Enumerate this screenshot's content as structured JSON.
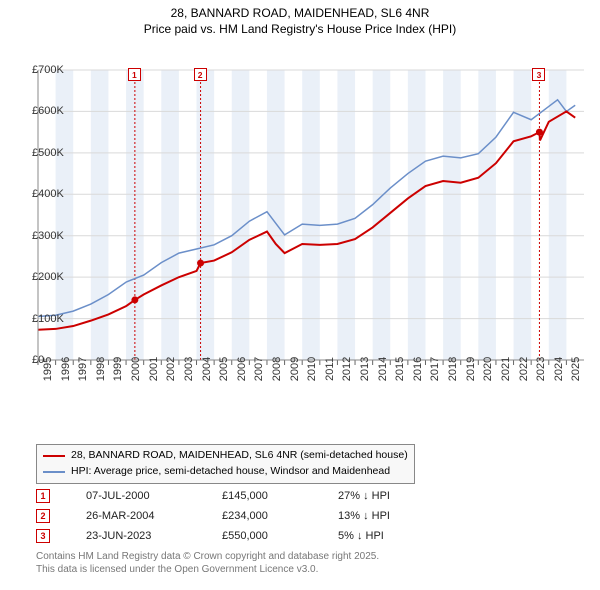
{
  "title_line1": "28, BANNARD ROAD, MAIDENHEAD, SL6 4NR",
  "title_line2": "Price paid vs. HM Land Registry's House Price Index (HPI)",
  "chart": {
    "type": "line",
    "background_color": "#ffffff",
    "grid_color": "#d9d9d9",
    "band_color": "#eaf0f8",
    "xlim": [
      1995,
      2026
    ],
    "ylim": [
      0,
      700000
    ],
    "ytick_step": 100000,
    "ytick_labels": [
      "£0",
      "£100K",
      "£200K",
      "£300K",
      "£400K",
      "£500K",
      "£600K",
      "£700K"
    ],
    "xtick_years": [
      1995,
      1996,
      1997,
      1998,
      1999,
      2000,
      2001,
      2002,
      2003,
      2004,
      2005,
      2006,
      2007,
      2008,
      2009,
      2010,
      2011,
      2012,
      2013,
      2014,
      2015,
      2016,
      2017,
      2018,
      2019,
      2020,
      2021,
      2022,
      2023,
      2024,
      2025
    ],
    "series_red": {
      "color": "#cc0000",
      "width": 2,
      "label": "28, BANNARD ROAD, MAIDENHEAD, SL6 4NR (semi-detached house)",
      "data": [
        [
          1995,
          73000
        ],
        [
          1996,
          75000
        ],
        [
          1997,
          82000
        ],
        [
          1998,
          95000
        ],
        [
          1999,
          110000
        ],
        [
          2000,
          130000
        ],
        [
          2000.5,
          145000
        ],
        [
          2001,
          158000
        ],
        [
          2002,
          180000
        ],
        [
          2003,
          200000
        ],
        [
          2004,
          215000
        ],
        [
          2004.23,
          234000
        ],
        [
          2005,
          240000
        ],
        [
          2006,
          260000
        ],
        [
          2007,
          290000
        ],
        [
          2008,
          310000
        ],
        [
          2008.5,
          280000
        ],
        [
          2009,
          258000
        ],
        [
          2010,
          280000
        ],
        [
          2011,
          278000
        ],
        [
          2012,
          280000
        ],
        [
          2013,
          292000
        ],
        [
          2014,
          320000
        ],
        [
          2015,
          355000
        ],
        [
          2016,
          390000
        ],
        [
          2017,
          420000
        ],
        [
          2018,
          432000
        ],
        [
          2019,
          428000
        ],
        [
          2020,
          440000
        ],
        [
          2021,
          475000
        ],
        [
          2022,
          528000
        ],
        [
          2023,
          540000
        ],
        [
          2023.47,
          550000
        ],
        [
          2023.5,
          530000
        ],
        [
          2024,
          575000
        ],
        [
          2025,
          600000
        ],
        [
          2025.5,
          585000
        ]
      ]
    },
    "series_blue": {
      "color": "#6b8fc9",
      "width": 1.5,
      "label": "HPI: Average price, semi-detached house, Windsor and Maidenhead",
      "data": [
        [
          1995,
          105000
        ],
        [
          1996,
          108000
        ],
        [
          1997,
          118000
        ],
        [
          1998,
          135000
        ],
        [
          1999,
          158000
        ],
        [
          2000,
          188000
        ],
        [
          2001,
          205000
        ],
        [
          2002,
          235000
        ],
        [
          2003,
          258000
        ],
        [
          2004,
          268000
        ],
        [
          2005,
          278000
        ],
        [
          2006,
          300000
        ],
        [
          2007,
          335000
        ],
        [
          2008,
          358000
        ],
        [
          2008.5,
          330000
        ],
        [
          2009,
          302000
        ],
        [
          2010,
          328000
        ],
        [
          2011,
          325000
        ],
        [
          2012,
          328000
        ],
        [
          2013,
          342000
        ],
        [
          2014,
          375000
        ],
        [
          2015,
          415000
        ],
        [
          2016,
          450000
        ],
        [
          2017,
          480000
        ],
        [
          2018,
          492000
        ],
        [
          2019,
          488000
        ],
        [
          2020,
          498000
        ],
        [
          2021,
          538000
        ],
        [
          2022,
          598000
        ],
        [
          2023,
          580000
        ],
        [
          2024,
          612000
        ],
        [
          2024.5,
          628000
        ],
        [
          2025,
          600000
        ],
        [
          2025.5,
          615000
        ]
      ]
    },
    "sale_points": [
      {
        "x": 2000.5,
        "y": 145000,
        "color": "#cc0000"
      },
      {
        "x": 2004.23,
        "y": 234000,
        "color": "#cc0000"
      },
      {
        "x": 2023.47,
        "y": 550000,
        "color": "#cc0000"
      }
    ],
    "sale_vlines": [
      {
        "x": 2000.5,
        "color": "#cc0000"
      },
      {
        "x": 2004.23,
        "color": "#cc0000"
      },
      {
        "x": 2023.47,
        "color": "#cc0000"
      }
    ],
    "sale_markers": [
      {
        "n": "1",
        "x": 2000.5,
        "color": "#cc0000"
      },
      {
        "n": "2",
        "x": 2004.23,
        "color": "#cc0000"
      },
      {
        "n": "3",
        "x": 2023.47,
        "color": "#cc0000"
      }
    ]
  },
  "legend": {
    "row1_label": "28, BANNARD ROAD, MAIDENHEAD, SL6 4NR (semi-detached house)",
    "row1_color": "#cc0000",
    "row2_label": "HPI: Average price, semi-detached house, Windsor and Maidenhead",
    "row2_color": "#6b8fc9"
  },
  "markers_table": [
    {
      "n": "1",
      "color": "#cc0000",
      "date": "07-JUL-2000",
      "price": "£145,000",
      "diff": "27% ↓ HPI"
    },
    {
      "n": "2",
      "color": "#cc0000",
      "date": "26-MAR-2004",
      "price": "£234,000",
      "diff": "13% ↓ HPI"
    },
    {
      "n": "3",
      "color": "#cc0000",
      "date": "23-JUN-2023",
      "price": "£550,000",
      "diff": "5% ↓ HPI"
    }
  ],
  "footer_line1": "Contains HM Land Registry data © Crown copyright and database right 2025.",
  "footer_line2": "This data is licensed under the Open Government Licence v3.0."
}
